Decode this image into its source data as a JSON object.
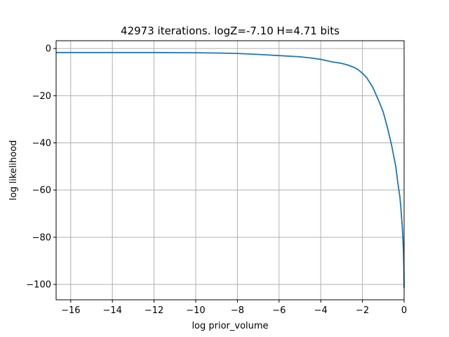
{
  "chart_data": {
    "type": "line",
    "title": "42973 iterations. logZ=-7.10 H=4.71 bits",
    "xlabel": "log prior_volume",
    "ylabel": "log likelihood",
    "xlim": [
      -16.7,
      0
    ],
    "ylim": [
      -106.5,
      3.3
    ],
    "grid": true,
    "xticks": [
      -16,
      -14,
      -12,
      -10,
      -8,
      -6,
      -4,
      -2,
      0
    ],
    "xtick_labels": [
      "−16",
      "−14",
      "−12",
      "−10",
      "−8",
      "−6",
      "−4",
      "−2",
      "0"
    ],
    "yticks": [
      0,
      -20,
      -40,
      -60,
      -80,
      -100
    ],
    "ytick_labels": [
      "0",
      "−20",
      "−40",
      "−60",
      "−80",
      "−100"
    ],
    "series": [
      {
        "color": "#1f77b4",
        "x": [
          -16.7,
          -14.0,
          -12.0,
          -10.0,
          -9.0,
          -8.0,
          -7.0,
          -6.0,
          -5.0,
          -4.5,
          -4.0,
          -3.5,
          -3.0,
          -2.7,
          -2.4,
          -2.2,
          -2.0,
          -1.8,
          -1.5,
          -1.2,
          -1.0,
          -0.8,
          -0.6,
          -0.4,
          -0.3,
          -0.2,
          -0.15,
          -0.1,
          -0.06,
          -0.03,
          -0.01,
          0.0
        ],
        "y": [
          -1.7,
          -1.7,
          -1.7,
          -1.8,
          -1.9,
          -2.1,
          -2.5,
          -3.0,
          -3.5,
          -4.0,
          -4.6,
          -5.6,
          -6.3,
          -7.0,
          -8.0,
          -9.0,
          -10.5,
          -12.3,
          -16.5,
          -22.5,
          -27.0,
          -33.5,
          -41.0,
          -50.0,
          -57.0,
          -63.0,
          -68.0,
          -74.0,
          -80.0,
          -86.0,
          -94.0,
          -101.5
        ]
      }
    ]
  }
}
